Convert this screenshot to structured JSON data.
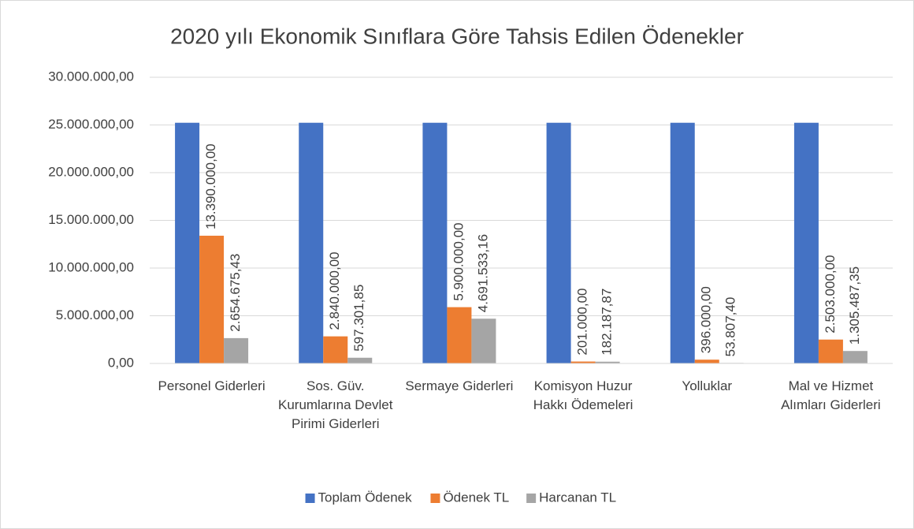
{
  "chart_data": {
    "type": "bar",
    "title": "2020 yılı Ekonomik Sınıflara Göre Tahsis Edilen Ödenekler",
    "categories": [
      "Personel Giderleri",
      "Sos. Güv. Kurumlarına Devlet Pirimi Giderleri",
      "Sermaye Giderleri",
      "Komisyon Huzur Hakkı Ödemeleri",
      "Yolluklar",
      "Mal ve Hizmet Alımları Giderleri"
    ],
    "series": [
      {
        "name": "Toplam Ödenek",
        "color": "#4472c4",
        "values": [
          25230000,
          25230000,
          25230000,
          25230000,
          25230000,
          25230000
        ]
      },
      {
        "name": "Ödenek TL",
        "color": "#ed7d31",
        "values": [
          13390000,
          2840000,
          5900000,
          201000,
          396000,
          2503000
        ],
        "value_labels": [
          "13.390.000,00",
          "2.840.000,00",
          "5.900.000,00",
          "201.000,00",
          "396.000,00",
          "2.503.000,00"
        ]
      },
      {
        "name": "Harcanan TL",
        "color": "#a5a5a5",
        "values": [
          2654675.43,
          597301.85,
          4691533.16,
          182187.87,
          53807.4,
          1305487.35
        ],
        "value_labels": [
          "2.654.675,43",
          "597.301,85",
          "4.691.533,16",
          "182.187,87",
          "53.807,40",
          "1.305.487,35"
        ]
      }
    ],
    "ylim": [
      0,
      30000000
    ],
    "yticks": [
      {
        "value": 0,
        "label": "0,00"
      },
      {
        "value": 5000000,
        "label": "5.000.000,00"
      },
      {
        "value": 10000000,
        "label": "10.000.000,00"
      },
      {
        "value": 15000000,
        "label": "15.000.000,00"
      },
      {
        "value": 20000000,
        "label": "20.000.000,00"
      },
      {
        "value": 25000000,
        "label": "25.000.000,00"
      },
      {
        "value": 30000000,
        "label": "30.000.000,00"
      }
    ],
    "grid": true,
    "legend": "bottom"
  }
}
